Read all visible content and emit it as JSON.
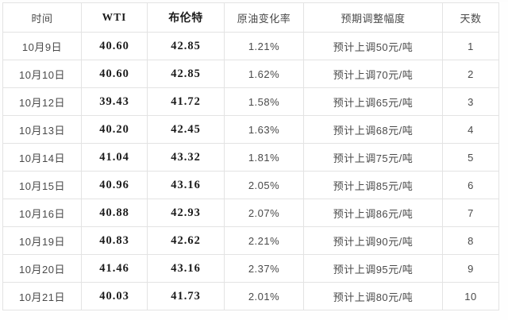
{
  "chart_data": {
    "type": "table",
    "columns": [
      "时间",
      "WTI",
      "布伦特",
      "原油变化率",
      "预期调整幅度",
      "天数"
    ],
    "rows": [
      [
        "10月9日",
        "40.60",
        "42.85",
        "1.21%",
        "预计上调50元/吨",
        "1"
      ],
      [
        "10月10日",
        "40.60",
        "42.85",
        "1.62%",
        "预计上调70元/吨",
        "2"
      ],
      [
        "10月12日",
        "39.43",
        "41.72",
        "1.58%",
        "预计上调65元/吨",
        "3"
      ],
      [
        "10月13日",
        "40.20",
        "42.45",
        "1.63%",
        "预计上调68元/吨",
        "4"
      ],
      [
        "10月14日",
        "41.04",
        "43.32",
        "1.81%",
        "预计上调75元/吨",
        "5"
      ],
      [
        "10月15日",
        "40.96",
        "43.16",
        "2.05%",
        "预计上调85元/吨",
        "6"
      ],
      [
        "10月16日",
        "40.88",
        "42.93",
        "2.07%",
        "预计上调86元/吨",
        "7"
      ],
      [
        "10月19日",
        "40.83",
        "42.62",
        "2.21%",
        "预计上调90元/吨",
        "8"
      ],
      [
        "10月20日",
        "41.46",
        "43.16",
        "2.37%",
        "预计上调95元/吨",
        "9"
      ],
      [
        "10月21日",
        "40.03",
        "41.73",
        "2.01%",
        "预计上调80元/吨",
        "10"
      ]
    ],
    "layout": {
      "grid": true,
      "border_color": "#e3e3e3",
      "background": "#ffffff",
      "regular_text_color": "#4a4a4a",
      "bold_text_color": "#1c1c1c",
      "bold_columns": [
        "WTI",
        "布伦特"
      ]
    }
  }
}
